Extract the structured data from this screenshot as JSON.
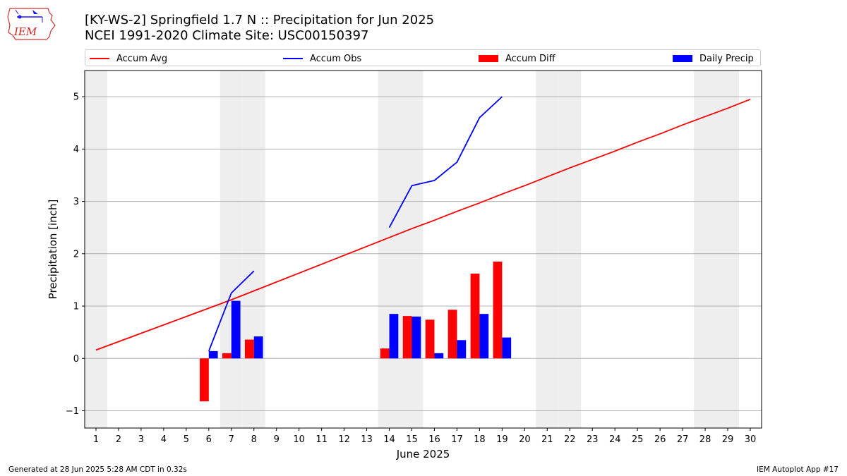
{
  "title_line1": "[KY-WS-2] Springfield 1.7 N :: Precipitation for Jun 2025",
  "title_line2": "NCEI 1991-2020 Climate Site: USC00150397",
  "logo_text": "IEM",
  "legend": [
    {
      "label": "Accum Avg",
      "color": "#ff0000",
      "kind": "line"
    },
    {
      "label": "Accum Obs",
      "color": "#0000ff",
      "kind": "line"
    },
    {
      "label": "Accum Diff",
      "color": "#ff0000",
      "kind": "patch"
    },
    {
      "label": "Daily Precip",
      "color": "#0000ff",
      "kind": "patch"
    }
  ],
  "footer_left": "Generated at 28 Jun 2025 5:28 AM CDT in 0.32s",
  "footer_right": "IEM Autoplot App #17",
  "chart_data": {
    "type": "bar",
    "xlabel": "June 2025",
    "ylabel": "Precipitation [inch]",
    "x": [
      1,
      2,
      3,
      4,
      5,
      6,
      7,
      8,
      9,
      10,
      11,
      12,
      13,
      14,
      15,
      16,
      17,
      18,
      19,
      20,
      21,
      22,
      23,
      24,
      25,
      26,
      27,
      28,
      29,
      30
    ],
    "xlim": [
      0.5,
      30.5
    ],
    "ylim": [
      -1.33,
      5.5
    ],
    "yticks": [
      -1,
      0,
      1,
      2,
      3,
      4,
      5
    ],
    "ytick_labels": [
      "−1",
      "0",
      "1",
      "2",
      "3",
      "4",
      "5"
    ],
    "grid": true,
    "weekend_shading_days": [
      1,
      7,
      8,
      14,
      15,
      21,
      22,
      28,
      29
    ],
    "series": [
      {
        "name": "Accum Avg",
        "kind": "line",
        "color": "#ff0000",
        "x": [
          1,
          2,
          3,
          4,
          5,
          6,
          7,
          8,
          9,
          10,
          11,
          12,
          13,
          14,
          15,
          16,
          17,
          18,
          19,
          20,
          21,
          22,
          23,
          24,
          25,
          26,
          27,
          28,
          29,
          30
        ],
        "values": [
          0.16,
          0.32,
          0.48,
          0.64,
          0.8,
          0.96,
          1.12,
          1.29,
          1.46,
          1.63,
          1.8,
          1.97,
          2.14,
          2.31,
          2.48,
          2.64,
          2.81,
          2.97,
          3.14,
          3.3,
          3.47,
          3.64,
          3.8,
          3.96,
          4.13,
          4.29,
          4.46,
          4.62,
          4.78,
          4.95
        ]
      },
      {
        "name": "Accum Obs",
        "kind": "line",
        "color": "#0000ff",
        "segments": [
          {
            "x": [
              6,
              7,
              8
            ],
            "values": [
              0.14,
              1.25,
              1.67
            ]
          },
          {
            "x": [
              14,
              15,
              16,
              17,
              18,
              19
            ],
            "values": [
              2.5,
              3.3,
              3.4,
              3.75,
              4.6,
              5.0
            ]
          }
        ]
      },
      {
        "name": "Accum Diff",
        "kind": "bar",
        "color": "#ff0000",
        "x": [
          6,
          7,
          8,
          14,
          15,
          16,
          17,
          18,
          19
        ],
        "values": [
          -0.82,
          0.1,
          0.36,
          0.19,
          0.81,
          0.74,
          0.93,
          1.62,
          1.85
        ]
      },
      {
        "name": "Daily Precip",
        "kind": "bar",
        "color": "#0000ff",
        "x": [
          6,
          7,
          8,
          14,
          15,
          16,
          17,
          18,
          19
        ],
        "values": [
          0.14,
          1.1,
          0.42,
          0.85,
          0.8,
          0.1,
          0.35,
          0.85,
          0.4
        ]
      }
    ]
  }
}
